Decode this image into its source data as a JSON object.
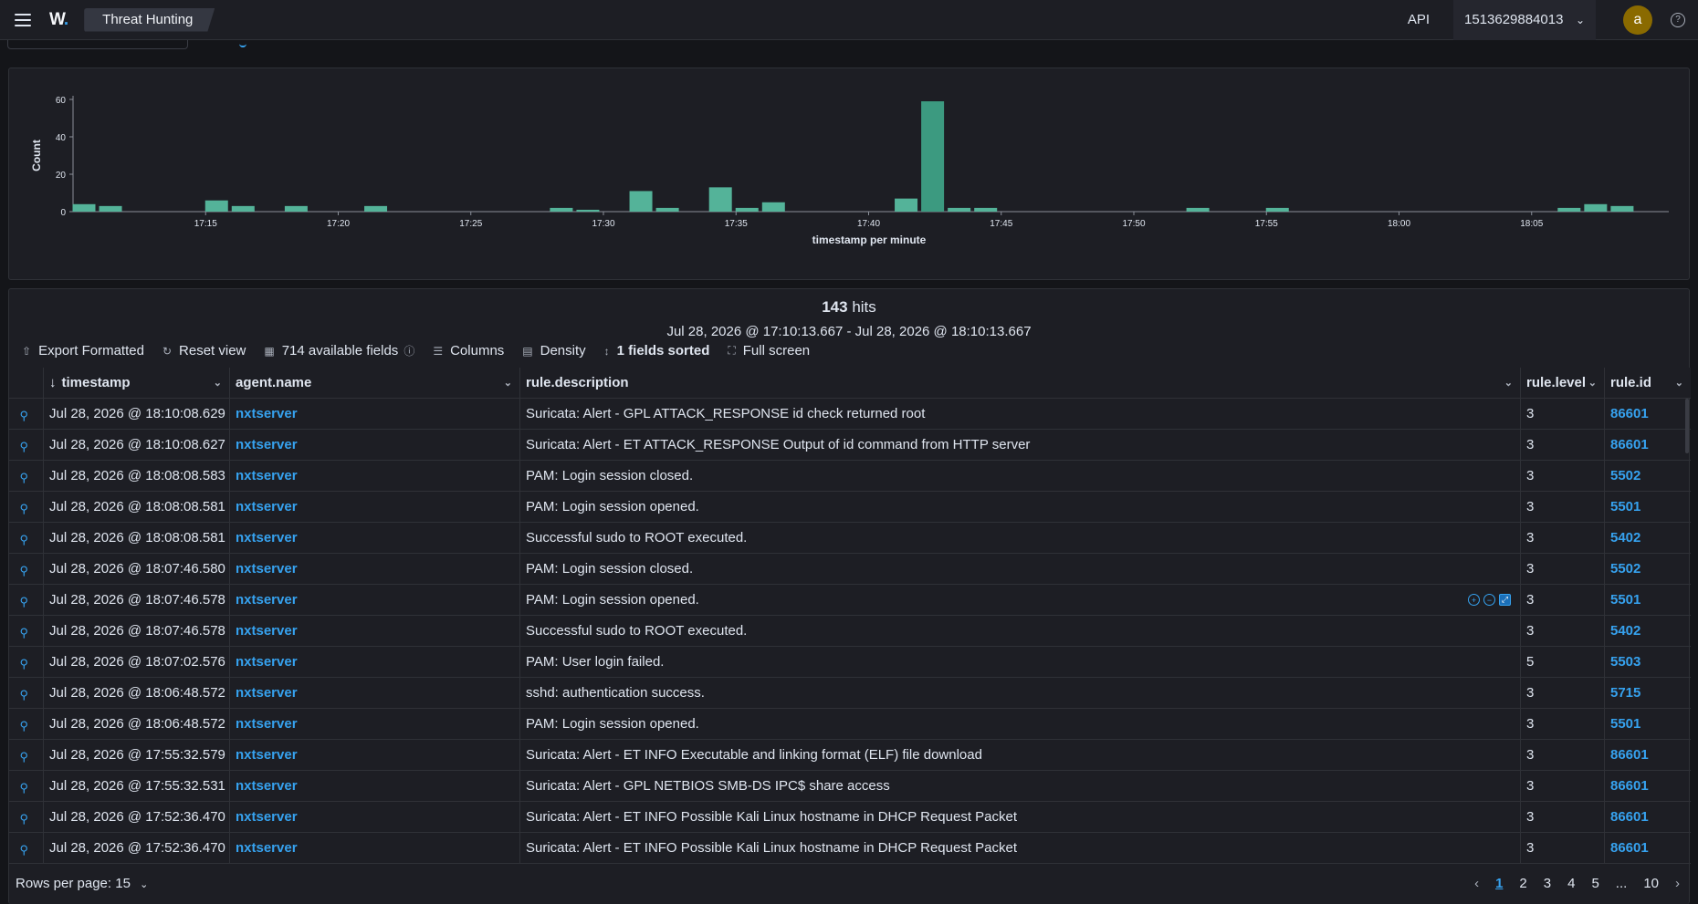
{
  "header": {
    "logo": "W",
    "breadcrumb": "Threat Hunting",
    "api_label": "API",
    "api_selected": "1513629884013",
    "avatar_letter": "a"
  },
  "chart_data": {
    "type": "bar",
    "xlabel": "timestamp per minute",
    "ylabel": "Count",
    "ylim": [
      0,
      60
    ],
    "yticks": [
      0,
      20,
      40,
      60
    ],
    "x_start": "17:10",
    "x_tick_labels": [
      "17:15",
      "17:20",
      "17:25",
      "17:30",
      "17:35",
      "17:40",
      "17:45",
      "17:50",
      "17:55",
      "18:00",
      "18:05"
    ],
    "bar_color": "#54b399",
    "highlight_color": "#3c9a80",
    "series": [
      {
        "minutes": [
          "17:10",
          "17:11",
          "17:15",
          "17:16",
          "17:18",
          "17:21",
          "17:28",
          "17:29",
          "17:31",
          "17:32",
          "17:34",
          "17:35",
          "17:36",
          "17:41",
          "17:42",
          "17:43",
          "17:44",
          "17:52",
          "17:55",
          "18:06",
          "18:07",
          "18:08"
        ],
        "values": [
          4,
          3,
          6,
          3,
          3,
          3,
          2,
          1,
          11,
          2,
          13,
          2,
          5,
          7,
          59,
          2,
          2,
          2,
          2,
          2,
          4,
          3
        ]
      }
    ]
  },
  "summary": {
    "hits_count": "143",
    "hits_label": "hits",
    "time_range": "Jul 28, 2026 @ 17:10:13.667 - Jul 28, 2026 @ 18:10:13.667"
  },
  "toolbar": {
    "export": "Export Formatted",
    "reset": "Reset view",
    "fields": "714 available fields",
    "columns": "Columns",
    "density": "Density",
    "sorted": "1 fields sorted",
    "fullscreen": "Full screen"
  },
  "columns": [
    "timestamp",
    "agent.name",
    "rule.description",
    "rule.level",
    "rule.id"
  ],
  "rows": [
    {
      "timestamp": "Jul 28, 2026 @ 18:10:08.629",
      "agent": "nxtserver",
      "description": "Suricata: Alert - GPL ATTACK_RESPONSE id check returned root",
      "level": "3",
      "id": "86601"
    },
    {
      "timestamp": "Jul 28, 2026 @ 18:10:08.627",
      "agent": "nxtserver",
      "description": "Suricata: Alert - ET ATTACK_RESPONSE Output of id command from HTTP server",
      "level": "3",
      "id": "86601"
    },
    {
      "timestamp": "Jul 28, 2026 @ 18:08:08.583",
      "agent": "nxtserver",
      "description": "PAM: Login session closed.",
      "level": "3",
      "id": "5502"
    },
    {
      "timestamp": "Jul 28, 2026 @ 18:08:08.581",
      "agent": "nxtserver",
      "description": "PAM: Login session opened.",
      "level": "3",
      "id": "5501"
    },
    {
      "timestamp": "Jul 28, 2026 @ 18:08:08.581",
      "agent": "nxtserver",
      "description": "Successful sudo to ROOT executed.",
      "level": "3",
      "id": "5402"
    },
    {
      "timestamp": "Jul 28, 2026 @ 18:07:46.580",
      "agent": "nxtserver",
      "description": "PAM: Login session closed.",
      "level": "3",
      "id": "5502"
    },
    {
      "timestamp": "Jul 28, 2026 @ 18:07:46.578",
      "agent": "nxtserver",
      "description": "PAM: Login session opened.",
      "level": "3",
      "id": "5501"
    },
    {
      "timestamp": "Jul 28, 2026 @ 18:07:46.578",
      "agent": "nxtserver",
      "description": "Successful sudo to ROOT executed.",
      "level": "3",
      "id": "5402"
    },
    {
      "timestamp": "Jul 28, 2026 @ 18:07:02.576",
      "agent": "nxtserver",
      "description": "PAM: User login failed.",
      "level": "5",
      "id": "5503"
    },
    {
      "timestamp": "Jul 28, 2026 @ 18:06:48.572",
      "agent": "nxtserver",
      "description": "sshd: authentication success.",
      "level": "3",
      "id": "5715"
    },
    {
      "timestamp": "Jul 28, 2026 @ 18:06:48.572",
      "agent": "nxtserver",
      "description": "PAM: Login session opened.",
      "level": "3",
      "id": "5501"
    },
    {
      "timestamp": "Jul 28, 2026 @ 17:55:32.579",
      "agent": "nxtserver",
      "description": "Suricata: Alert - ET INFO Executable and linking format (ELF) file download",
      "level": "3",
      "id": "86601"
    },
    {
      "timestamp": "Jul 28, 2026 @ 17:55:32.531",
      "agent": "nxtserver",
      "description": "Suricata: Alert - GPL NETBIOS SMB-DS IPC$ share access",
      "level": "3",
      "id": "86601"
    },
    {
      "timestamp": "Jul 28, 2026 @ 17:52:36.470",
      "agent": "nxtserver",
      "description": "Suricata: Alert - ET INFO Possible Kali Linux hostname in DHCP Request Packet",
      "level": "3",
      "id": "86601"
    },
    {
      "timestamp": "Jul 28, 2026 @ 17:52:36.470",
      "agent": "nxtserver",
      "description": "Suricata: Alert - ET INFO Possible Kali Linux hostname in DHCP Request Packet",
      "level": "3",
      "id": "86601"
    }
  ],
  "footer": {
    "rows_per_page": "Rows per page: 15",
    "pages": [
      "1",
      "2",
      "3",
      "4",
      "5",
      "...",
      "10"
    ],
    "current_page": "1"
  }
}
